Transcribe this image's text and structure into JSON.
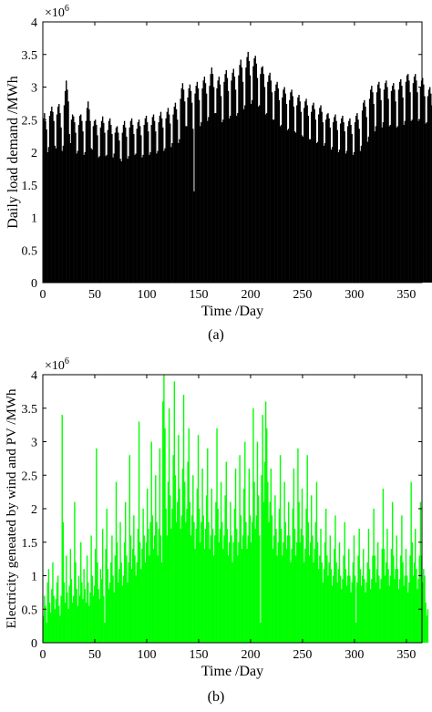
{
  "panel_labels": [
    "(a)",
    "(b)"
  ],
  "chart_data": [
    {
      "id": "a",
      "type": "bar",
      "title": "",
      "xlabel": "Time /Day",
      "ylabel": "Daily load demand /MWh",
      "xlim": [
        0,
        365
      ],
      "ylim": [
        0,
        4
      ],
      "scale_factor": "×10^6",
      "xticks": [
        0,
        50,
        100,
        150,
        200,
        250,
        300,
        350
      ],
      "yticks": [
        0,
        0.5,
        1,
        1.5,
        2,
        2.5,
        3,
        3.5,
        4
      ],
      "color": "#000000",
      "grid": false,
      "series": [
        {
          "x_start": 1,
          "x_step": 1,
          "values": [
            2.52,
            2.6,
            2.48,
            2.35,
            2.0,
            2.08,
            2.56,
            2.63,
            2.7,
            2.62,
            2.48,
            2.1,
            2.06,
            2.58,
            2.7,
            2.74,
            2.6,
            2.38,
            2.02,
            2.1,
            2.72,
            2.94,
            3.1,
            2.96,
            2.78,
            2.28,
            2.14,
            2.5,
            2.58,
            2.55,
            2.46,
            2.3,
            1.98,
            2.02,
            2.42,
            2.56,
            2.58,
            2.48,
            2.32,
            1.96,
            2.0,
            2.48,
            2.68,
            2.78,
            2.66,
            2.48,
            2.06,
            2.04,
            2.4,
            2.48,
            2.5,
            2.42,
            2.26,
            1.92,
            1.94,
            2.38,
            2.48,
            2.55,
            2.45,
            2.3,
            1.94,
            1.96,
            2.34,
            2.48,
            2.52,
            2.42,
            2.28,
            1.92,
            1.98,
            2.3,
            2.38,
            2.4,
            2.3,
            2.18,
            1.9,
            1.86,
            2.3,
            2.42,
            2.48,
            2.38,
            2.24,
            1.9,
            1.94,
            2.38,
            2.48,
            2.52,
            2.42,
            2.28,
            1.96,
            1.98,
            2.36,
            2.46,
            2.5,
            2.4,
            2.26,
            1.92,
            1.96,
            2.42,
            2.52,
            2.56,
            2.46,
            2.32,
            1.96,
            2.0,
            2.42,
            2.54,
            2.58,
            2.48,
            2.32,
            1.98,
            2.02,
            2.46,
            2.56,
            2.62,
            2.52,
            2.38,
            2.02,
            2.06,
            2.52,
            2.62,
            2.68,
            2.58,
            2.44,
            2.08,
            2.14,
            2.58,
            2.7,
            2.76,
            2.66,
            2.5,
            2.14,
            2.2,
            2.82,
            2.98,
            3.06,
            2.96,
            2.78,
            2.4,
            2.4,
            2.84,
            2.98,
            3.04,
            2.94,
            2.76,
            2.36,
            1.4,
            2.9,
            3.02,
            3.08,
            2.98,
            2.8,
            2.4,
            2.46,
            2.98,
            3.1,
            3.16,
            3.06,
            2.9,
            2.48,
            2.54,
            3.02,
            3.2,
            3.3,
            3.2,
            3.0,
            2.6,
            2.6,
            2.98,
            3.1,
            3.16,
            3.04,
            2.86,
            2.46,
            2.5,
            3.08,
            3.2,
            3.26,
            3.14,
            2.94,
            2.52,
            2.56,
            3.1,
            3.22,
            3.28,
            3.16,
            2.96,
            2.56,
            2.6,
            3.18,
            3.34,
            3.42,
            3.3,
            3.08,
            2.66,
            2.72,
            3.3,
            3.46,
            3.54,
            3.4,
            3.18,
            2.74,
            2.8,
            3.32,
            3.44,
            3.48,
            3.36,
            3.14,
            2.7,
            2.72,
            3.2,
            3.3,
            3.32,
            3.2,
            3.0,
            2.58,
            2.6,
            3.08,
            3.18,
            3.22,
            3.1,
            2.92,
            2.5,
            2.5,
            2.94,
            3.04,
            3.08,
            2.98,
            2.8,
            2.4,
            2.42,
            2.84,
            2.96,
            3.0,
            2.9,
            2.74,
            2.34,
            2.36,
            2.8,
            2.92,
            2.96,
            2.86,
            2.7,
            2.32,
            2.3,
            2.72,
            2.84,
            2.88,
            2.78,
            2.62,
            2.26,
            2.24,
            2.68,
            2.78,
            2.82,
            2.72,
            2.56,
            2.2,
            2.2,
            2.62,
            2.72,
            2.76,
            2.66,
            2.5,
            2.14,
            2.16,
            2.58,
            2.68,
            2.72,
            2.62,
            2.46,
            2.1,
            2.14,
            2.5,
            2.58,
            2.6,
            2.52,
            2.38,
            2.04,
            2.08,
            2.46,
            2.54,
            2.58,
            2.48,
            2.34,
            2.0,
            2.04,
            2.44,
            2.52,
            2.56,
            2.46,
            2.32,
            1.98,
            2.02,
            2.4,
            2.48,
            2.52,
            2.42,
            2.28,
            1.96,
            2.0,
            2.46,
            2.56,
            2.6,
            2.5,
            2.36,
            2.02,
            2.1,
            2.64,
            2.76,
            2.8,
            2.7,
            2.54,
            2.16,
            2.24,
            2.82,
            2.96,
            3.02,
            2.92,
            2.74,
            2.32,
            2.4,
            2.92,
            3.04,
            3.08,
            2.98,
            2.8,
            2.38,
            2.46,
            2.96,
            3.06,
            3.1,
            3.0,
            2.82,
            2.4,
            2.42,
            2.94,
            3.02,
            3.06,
            2.96,
            2.78,
            2.38,
            2.4,
            2.96,
            3.08,
            3.12,
            3.02,
            2.84,
            2.42,
            2.48,
            3.08,
            3.18,
            3.2,
            3.1,
            2.92,
            2.48,
            2.5,
            3.06,
            3.16,
            3.2,
            3.1,
            2.92,
            2.48,
            2.5,
            3.0,
            3.1,
            3.14,
            3.04,
            2.86,
            2.44,
            2.46,
            2.86,
            2.96,
            3.0,
            2.9,
            2.72,
            2.34,
            2.36,
            2.46,
            2.5
          ]
        }
      ]
    },
    {
      "id": "b",
      "type": "bar",
      "title": "",
      "xlabel": "Time /Day",
      "ylabel": "Electricity geneated by wind and PV /MWh",
      "xlim": [
        0,
        365
      ],
      "ylim": [
        0,
        4
      ],
      "scale_factor": "×10^6",
      "xticks": [
        0,
        50,
        100,
        150,
        200,
        250,
        300,
        350
      ],
      "yticks": [
        0,
        0.5,
        1,
        1.5,
        2,
        2.5,
        3,
        3.5,
        4
      ],
      "color": "#00ff00",
      "grid": false,
      "series": [
        {
          "x_start": 1,
          "x_step": 1,
          "values": [
            0.4,
            0.7,
            0.55,
            0.3,
            0.9,
            1.1,
            0.6,
            0.45,
            0.8,
            1.2,
            0.7,
            0.5,
            0.65,
            0.9,
            1.0,
            0.55,
            0.4,
            0.7,
            3.4,
            1.8,
            0.9,
            0.6,
            1.3,
            0.75,
            0.5,
            0.85,
            1.4,
            0.95,
            0.6,
            0.7,
            2.1,
            1.2,
            0.8,
            0.55,
            1.0,
            0.7,
            1.5,
            0.9,
            0.65,
            1.1,
            0.8,
            0.6,
            1.3,
            0.9,
            0.55,
            0.75,
            1.6,
            1.0,
            0.7,
            0.85,
            1.4,
            2.9,
            1.2,
            0.8,
            0.65,
            1.1,
            0.95,
            1.7,
            0.7,
            0.3,
            1.4,
            2.0,
            1.1,
            0.8,
            0.9,
            1.2,
            1.6,
            1.0,
            0.75,
            1.3,
            2.4,
            1.5,
            0.9,
            1.1,
            1.8,
            1.2,
            0.85,
            1.0,
            1.5,
            2.1,
            1.3,
            0.9,
            1.2,
            2.8,
            1.6,
            1.1,
            1.4,
            1.9,
            1.3,
            1.0,
            1.2,
            1.7,
            3.3,
            1.5,
            1.1,
            1.4,
            2.0,
            1.6,
            1.2,
            1.5,
            2.3,
            1.7,
            1.3,
            1.8,
            3.0,
            1.9,
            1.4,
            1.6,
            2.5,
            1.8,
            1.3,
            1.7,
            2.9,
            1.6,
            1.2,
            3.6,
            4.0,
            3.2,
            2.0,
            1.6,
            2.4,
            3.5,
            2.2,
            1.7,
            2.0,
            2.8,
            3.9,
            2.5,
            1.8,
            2.1,
            3.1,
            2.3,
            1.7,
            1.9,
            2.6,
            3.7,
            2.4,
            1.8,
            2.0,
            2.7,
            3.2,
            2.1,
            1.6,
            1.9,
            2.5,
            1.8,
            1.4,
            1.7,
            2.3,
            3.1,
            2.0,
            1.5,
            1.8,
            2.6,
            1.9,
            1.4,
            1.7,
            2.2,
            2.9,
            1.8,
            1.4,
            1.6,
            2.3,
            1.7,
            1.3,
            1.6,
            2.1,
            3.2,
            2.0,
            1.5,
            1.7,
            2.4,
            1.8,
            1.4,
            1.6,
            2.2,
            2.7,
            1.7,
            1.3,
            1.5,
            2.1,
            1.6,
            1.2,
            1.5,
            2.0,
            2.6,
            1.7,
            1.3,
            1.5,
            2.8,
            1.9,
            1.4,
            1.6,
            2.3,
            3.0,
            1.8,
            1.4,
            1.6,
            2.6,
            1.9,
            1.5,
            1.8,
            3.5,
            2.4,
            1.7,
            1.9,
            3.0,
            2.2,
            1.6,
            0.3,
            2.5,
            3.4,
            2.1,
            2.7,
            3.6,
            3.2,
            2.4,
            1.8,
            2.1,
            2.6,
            1.9,
            1.4,
            1.6,
            2.2,
            1.7,
            1.3,
            1.5,
            2.0,
            2.8,
            1.7,
            1.3,
            1.5,
            2.4,
            1.8,
            1.4,
            1.6,
            2.1,
            1.6,
            1.2,
            1.4,
            2.0,
            2.6,
            1.7,
            1.3,
            1.5,
            2.9,
            2.1,
            1.5,
            1.7,
            2.3,
            1.6,
            1.2,
            1.4,
            2.0,
            2.8,
            1.8,
            1.3,
            1.5,
            2.2,
            1.6,
            1.2,
            1.4,
            1.8,
            2.4,
            1.5,
            1.1,
            1.3,
            1.7,
            1.2,
            0.9,
            1.1,
            1.5,
            2.0,
            1.3,
            1.0,
            1.2,
            1.6,
            1.1,
            0.85,
            1.0,
            1.4,
            1.9,
            1.2,
            0.9,
            1.1,
            1.5,
            1.0,
            0.8,
            0.95,
            1.3,
            1.8,
            1.1,
            0.85,
            1.0,
            1.4,
            1.0,
            0.75,
            0.9,
            1.2,
            1.6,
            1.0,
            0.3,
            0.9,
            1.3,
            1.7,
            1.1,
            0.85,
            1.0,
            1.4,
            0.95,
            0.75,
            0.9,
            1.2,
            1.7,
            1.1,
            0.8,
            0.95,
            1.3,
            2.0,
            1.3,
            0.9,
            1.1,
            1.5,
            1.0,
            0.8,
            0.95,
            1.4,
            2.3,
            1.4,
            1.0,
            1.2,
            1.7,
            1.1,
            0.85,
            1.0,
            1.4,
            2.1,
            1.3,
            0.95,
            1.1,
            1.6,
            1.1,
            0.8,
            0.95,
            1.3,
            1.9,
            1.2,
            0.85,
            1.0,
            1.4,
            1.0,
            0.75,
            0.9,
            1.3,
            2.4,
            1.5,
            1.0,
            1.2,
            1.7,
            1.1,
            0.8,
            0.95,
            1.3,
            2.1,
            1.3,
            0.9,
            1.1,
            1.0,
            0.6,
            0.4,
            0.5
          ]
        }
      ]
    }
  ]
}
